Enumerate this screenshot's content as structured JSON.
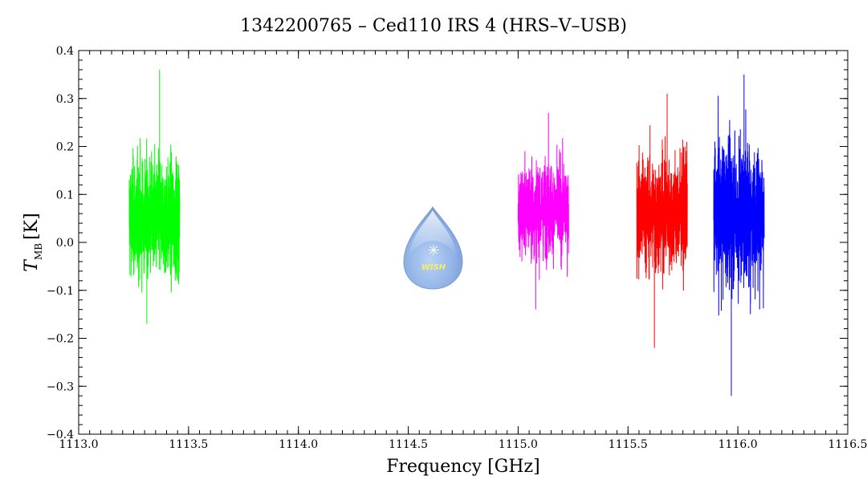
{
  "chart_data": {
    "type": "line",
    "title": "1342200765 – Ced110 IRS 4 (HRS–V–USB)",
    "xlabel": "Frequency [GHz]",
    "ylabel": {
      "symbol": "T",
      "subscript": "MB",
      "unit": "[K]"
    },
    "xlim": [
      1113.0,
      1116.5
    ],
    "ylim": [
      -0.4,
      0.4
    ],
    "xticks": [
      "1113.0",
      "1113.5",
      "1114.0",
      "1114.5",
      "1115.0",
      "1115.5",
      "1116.0",
      "1116.5"
    ],
    "yticks": [
      "−0.4",
      "−0.3",
      "−0.2",
      "−0.1",
      "0.0",
      "0.1",
      "0.2",
      "0.3",
      "0.4"
    ],
    "grid": false,
    "series": [
      {
        "color": "#00ff00",
        "x_range": [
          1113.23,
          1113.46
        ],
        "baseline": 0.05,
        "max": 0.36,
        "min": -0.17
      },
      {
        "color": "#ff00ff",
        "x_range": [
          1115.0,
          1115.23
        ],
        "baseline": 0.07,
        "max": 0.27,
        "min": -0.14
      },
      {
        "color": "#ff0000",
        "x_range": [
          1115.54,
          1115.77
        ],
        "baseline": 0.06,
        "max": 0.31,
        "min": -0.22
      },
      {
        "color": "#0000ff",
        "x_range": [
          1115.89,
          1116.12
        ],
        "baseline": 0.06,
        "max": 0.35,
        "min": -0.32
      }
    ],
    "logo": {
      "text": "WISH"
    }
  }
}
